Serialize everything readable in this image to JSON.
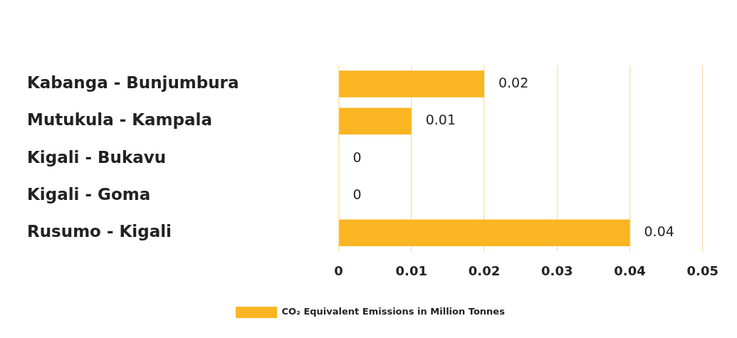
{
  "chart_data": {
    "type": "bar",
    "orientation": "horizontal",
    "categories": [
      "Kabanga - Bunjumbura",
      "Mutukula - Kampala",
      "Kigali - Bukavu",
      "Kigali - Goma",
      "Rusumo - Kigali"
    ],
    "series": [
      {
        "name": "CO₂ Equivalent Emissions in Million Tonnes",
        "color": "#f9b522",
        "values": [
          0.02,
          0.01,
          0,
          0,
          0.04
        ]
      }
    ],
    "xlim": [
      0,
      0.05
    ],
    "xticks": [
      0,
      0.01,
      0.02,
      0.03,
      0.04,
      0.05
    ],
    "grid": "x",
    "legend": "bottom",
    "data_labels": true
  }
}
